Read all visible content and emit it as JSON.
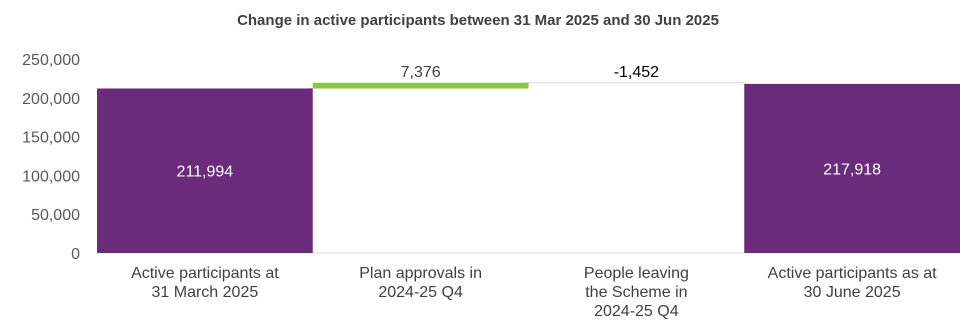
{
  "chart_data": {
    "type": "bar",
    "subtype": "waterfall",
    "title": "Change in active participants between 31 Mar 2025 and 30 Jun 2025",
    "xlabel": "",
    "ylabel": "",
    "ylim": [
      0,
      250000
    ],
    "yticks": [
      0,
      50000,
      100000,
      150000,
      200000,
      250000
    ],
    "ytick_labels": [
      "0",
      "50,000",
      "100,000",
      "150,000",
      "200,000",
      "250,000"
    ],
    "grid": false,
    "legend": "none",
    "categories": [
      [
        "Active participants at",
        "31 March 2025"
      ],
      [
        "Plan approvals in",
        "2024-25 Q4"
      ],
      [
        "People leaving",
        "the Scheme in",
        "2024-25 Q4"
      ],
      [
        "Active participants as at",
        "30 June 2025"
      ]
    ],
    "bars": [
      {
        "kind": "total",
        "start": 0,
        "end": 211994,
        "label": "211,994",
        "color": "#6a2c7a",
        "label_color": "#ffffff"
      },
      {
        "kind": "increase",
        "start": 211994,
        "end": 219370,
        "label": "7,376",
        "color": "#8dc63f",
        "label_color": "#404040"
      },
      {
        "kind": "decrease",
        "start": 219370,
        "end": 217918,
        "label": "-1,452",
        "color": "#ffffff",
        "label_color": "#000000"
      },
      {
        "kind": "total",
        "start": 0,
        "end": 217918,
        "label": "217,918",
        "color": "#6a2c7a",
        "label_color": "#ffffff"
      }
    ]
  }
}
